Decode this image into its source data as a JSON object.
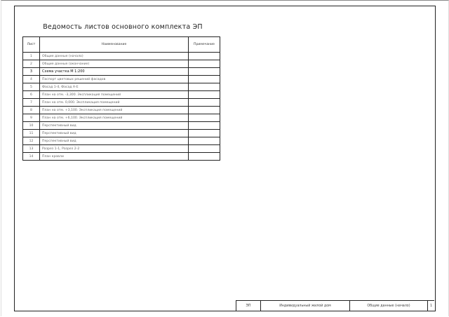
{
  "title": "Ведомость листов основного комплекта ЭП",
  "table": {
    "headers": [
      "Лист",
      "Наименование",
      "Примечание"
    ],
    "rows": [
      {
        "num": "1",
        "name": "Общие данные (начало)",
        "note": ""
      },
      {
        "num": "2",
        "name": "Общие данные (окончание)",
        "note": ""
      },
      {
        "num": "3",
        "name": "Схема участка М 1:200",
        "note": ""
      },
      {
        "num": "4",
        "name": "Паспорт цветовых решений фасадов",
        "note": ""
      },
      {
        "num": "5",
        "name": "Фасад 1-4, Фасад А-Е",
        "note": ""
      },
      {
        "num": "6",
        "name": "План на отм. -3,300. Экспликация помещений",
        "note": ""
      },
      {
        "num": "7",
        "name": "План на отм. 0,000. Экспликация помещений",
        "note": ""
      },
      {
        "num": "8",
        "name": "План на отм. +3,100. Экспликация помещений",
        "note": ""
      },
      {
        "num": "9",
        "name": "План на отм. +6,100. Экспликация помещений",
        "note": ""
      },
      {
        "num": "10",
        "name": "Перспективный вид",
        "note": ""
      },
      {
        "num": "11",
        "name": "Перспективный вид",
        "note": ""
      },
      {
        "num": "12",
        "name": "Перспективный вид",
        "note": ""
      },
      {
        "num": "13",
        "name": "Разрез 1-1, Разрез 2-2",
        "note": ""
      },
      {
        "num": "14",
        "name": "План кровли",
        "note": ""
      }
    ]
  },
  "title_block": {
    "code": "ЭП",
    "project": "Индивидуальный жилой дом",
    "sheet_name": "Общие данные (начало)",
    "sheet_number": "1"
  }
}
